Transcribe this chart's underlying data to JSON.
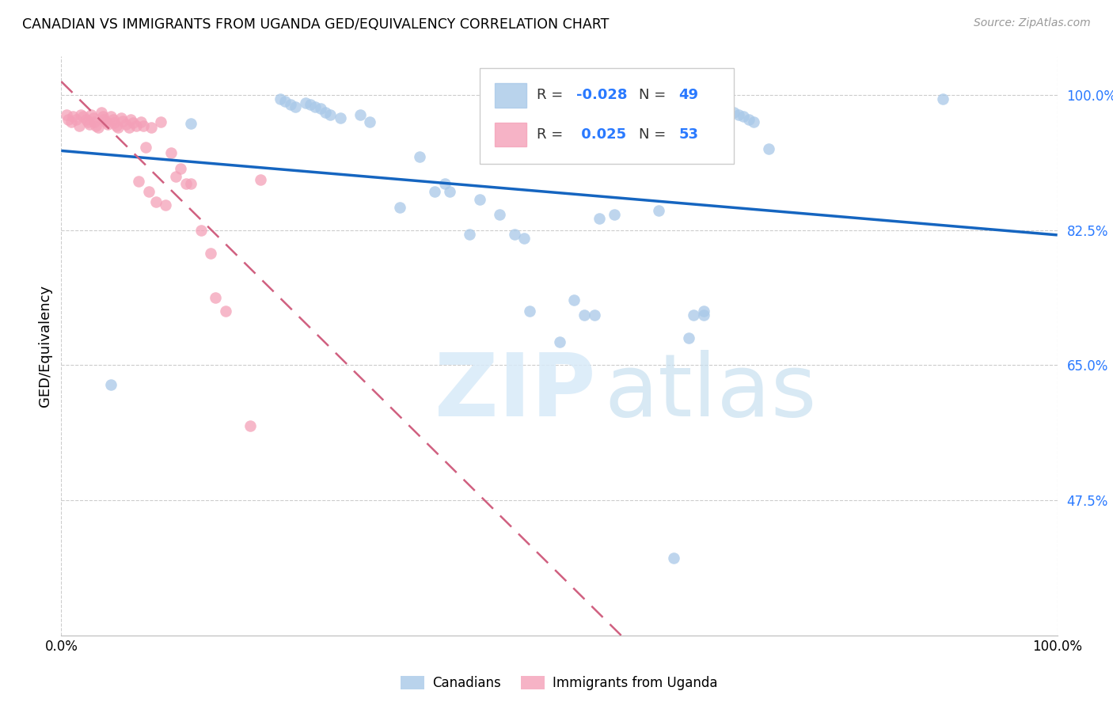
{
  "title": "CANADIAN VS IMMIGRANTS FROM UGANDA GED/EQUIVALENCY CORRELATION CHART",
  "source": "Source: ZipAtlas.com",
  "ylabel": "GED/Equivalency",
  "xlim": [
    0.0,
    1.0
  ],
  "ylim": [
    0.3,
    1.05
  ],
  "yticks": [
    0.475,
    0.65,
    0.825,
    1.0
  ],
  "ytick_labels": [
    "47.5%",
    "65.0%",
    "82.5%",
    "100.0%"
  ],
  "xticks": [
    0.0,
    0.1,
    0.2,
    0.3,
    0.4,
    0.5,
    0.6,
    0.7,
    0.8,
    0.9,
    1.0
  ],
  "xtick_labels": [
    "0.0%",
    "",
    "",
    "",
    "",
    "",
    "",
    "",
    "",
    "",
    "100.0%"
  ],
  "canadians_R": "-0.028",
  "canadians_N": "49",
  "uganda_R": "0.025",
  "uganda_N": "53",
  "blue_color": "#a8c8e8",
  "pink_color": "#f4a0b8",
  "trend_blue": "#1565C0",
  "trend_pink": "#d06080",
  "canadians_x": [
    0.05,
    0.13,
    0.22,
    0.225,
    0.23,
    0.235,
    0.245,
    0.25,
    0.255,
    0.26,
    0.265,
    0.27,
    0.28,
    0.3,
    0.31,
    0.34,
    0.36,
    0.375,
    0.385,
    0.39,
    0.41,
    0.42,
    0.44,
    0.455,
    0.465,
    0.47,
    0.5,
    0.515,
    0.525,
    0.535,
    0.54,
    0.555,
    0.6,
    0.615,
    0.63,
    0.635,
    0.645,
    0.645,
    0.655,
    0.66,
    0.665,
    0.67,
    0.675,
    0.68,
    0.685,
    0.69,
    0.695,
    0.71,
    0.885
  ],
  "canadians_y": [
    0.625,
    0.963,
    0.995,
    0.992,
    0.988,
    0.985,
    0.99,
    0.988,
    0.985,
    0.983,
    0.978,
    0.975,
    0.97,
    0.975,
    0.965,
    0.855,
    0.92,
    0.875,
    0.885,
    0.875,
    0.82,
    0.865,
    0.845,
    0.82,
    0.815,
    0.72,
    0.68,
    0.735,
    0.715,
    0.715,
    0.84,
    0.845,
    0.85,
    0.4,
    0.685,
    0.715,
    0.72,
    0.715,
    0.99,
    0.99,
    0.985,
    0.98,
    0.978,
    0.975,
    0.972,
    0.968,
    0.965,
    0.93,
    0.995
  ],
  "uganda_x": [
    0.005,
    0.007,
    0.01,
    0.012,
    0.015,
    0.018,
    0.02,
    0.022,
    0.025,
    0.027,
    0.028,
    0.03,
    0.032,
    0.033,
    0.035,
    0.037,
    0.04,
    0.042,
    0.043,
    0.045,
    0.047,
    0.05,
    0.052,
    0.053,
    0.055,
    0.057,
    0.06,
    0.062,
    0.065,
    0.068,
    0.07,
    0.072,
    0.075,
    0.078,
    0.08,
    0.082,
    0.085,
    0.088,
    0.09,
    0.095,
    0.1,
    0.105,
    0.11,
    0.115,
    0.12,
    0.125,
    0.13,
    0.14,
    0.15,
    0.155,
    0.165,
    0.19,
    0.2
  ],
  "uganda_y": [
    0.975,
    0.968,
    0.965,
    0.972,
    0.968,
    0.96,
    0.975,
    0.972,
    0.968,
    0.965,
    0.962,
    0.975,
    0.97,
    0.965,
    0.96,
    0.958,
    0.978,
    0.972,
    0.968,
    0.965,
    0.962,
    0.972,
    0.968,
    0.964,
    0.96,
    0.958,
    0.97,
    0.966,
    0.962,
    0.958,
    0.968,
    0.964,
    0.96,
    0.888,
    0.965,
    0.96,
    0.932,
    0.875,
    0.958,
    0.862,
    0.965,
    0.858,
    0.925,
    0.895,
    0.905,
    0.885,
    0.885,
    0.825,
    0.795,
    0.738,
    0.72,
    0.572,
    0.89
  ]
}
